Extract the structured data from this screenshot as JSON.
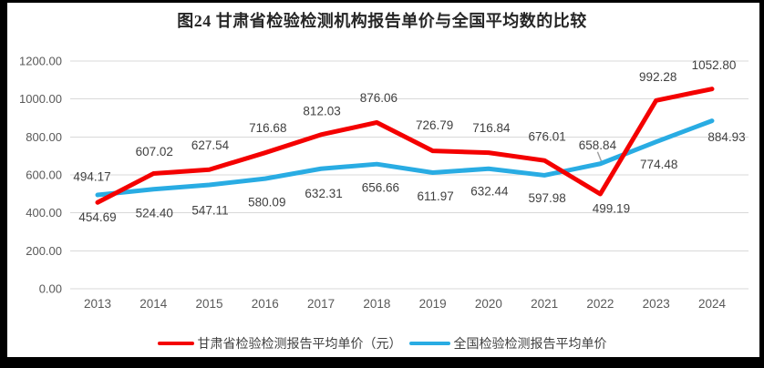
{
  "title": "图24 甘肃省检验检测机构报告单价与全国平均数的比较",
  "legend": {
    "items": [
      {
        "label": "甘肃省检验检测报告平均单价（元）",
        "color": "#F40000"
      },
      {
        "label": "全国检验检测报告平均单价",
        "color": "#29ACE3"
      }
    ]
  },
  "colors": {
    "grid": "#D9D9D9",
    "axis_text": "#595959",
    "data_label": "#404040",
    "title_text": "#262626",
    "leader": "#A0A0A0",
    "frame_border": "#000000",
    "background": "#FFFFFF"
  },
  "chart_data": {
    "type": "line",
    "title": "图24 甘肃省检验检测机构报告单价与全国平均数的比较",
    "categories": [
      "2013",
      "2014",
      "2015",
      "2016",
      "2017",
      "2018",
      "2019",
      "2020",
      "2021",
      "2022",
      "2023",
      "2024"
    ],
    "series": [
      {
        "name": "甘肃省检验检测报告平均单价（元）",
        "color": "#F40000",
        "values": [
          454.69,
          607.02,
          627.54,
          716.68,
          812.03,
          876.06,
          726.79,
          716.84,
          676.01,
          499.19,
          992.28,
          1052.8
        ],
        "label_offsets": [
          [
            0,
            16
          ],
          [
            1,
            -24
          ],
          [
            1,
            -27
          ],
          [
            3,
            -27
          ],
          [
            1,
            -26
          ],
          [
            2,
            -27
          ],
          [
            2,
            -28
          ],
          [
            3,
            -27
          ],
          [
            3,
            -26
          ],
          [
            12,
            16
          ],
          [
            2,
            -26
          ],
          [
            2,
            -26
          ]
        ]
      },
      {
        "name": "全国检验检测报告平均单价",
        "color": "#29ACE3",
        "values": [
          494.17,
          524.4,
          547.11,
          580.09,
          632.31,
          656.66,
          611.97,
          632.44,
          597.98,
          658.84,
          774.48,
          884.93
        ],
        "label_offsets": [
          [
            -6,
            -20
          ],
          [
            1,
            26
          ],
          [
            1,
            28
          ],
          [
            2,
            26
          ],
          [
            3,
            27
          ],
          [
            4,
            26
          ],
          [
            3,
            26
          ],
          [
            1,
            25
          ],
          [
            3,
            25
          ],
          [
            -3,
            -20
          ],
          [
            3,
            25
          ],
          [
            16,
            18
          ]
        ]
      }
    ],
    "xlabel": "",
    "ylabel": "",
    "ylim": [
      0,
      1200
    ],
    "ytick_interval": 200,
    "ytick_labels": [
      "0.00",
      "200.00",
      "400.00",
      "600.00",
      "800.00",
      "1000.00",
      "1200.00"
    ],
    "grid": "horizontal",
    "legend_position": "bottom",
    "data_labels": "on",
    "label_format": "2-decimals",
    "leader_line": {
      "series": 1,
      "index": 9,
      "from": [
        -3,
        -13
      ],
      "to": [
        1,
        -3
      ]
    }
  }
}
